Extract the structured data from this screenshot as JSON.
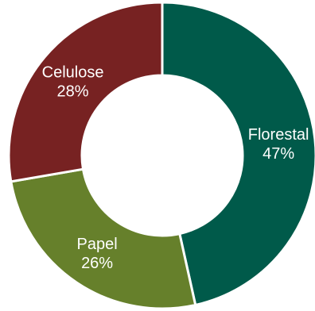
{
  "chart_data": {
    "type": "pie",
    "variant": "donut",
    "title": "",
    "slices": [
      {
        "label": "Florestal",
        "value": 47,
        "value_label": "47%",
        "color": "#005a4a"
      },
      {
        "label": "Papel",
        "value": 26,
        "value_label": "26%",
        "color": "#66802b"
      },
      {
        "label": "Celulose",
        "value": 28,
        "value_label": "28%",
        "color": "#772222"
      }
    ],
    "legend": "none",
    "label_color": "#ffffff",
    "separator_color": "#ffffff"
  }
}
